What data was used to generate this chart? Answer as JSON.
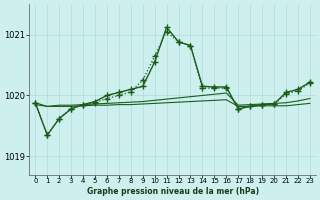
{
  "title": "Graphe pression niveau de la mer (hPa)",
  "background_color": "#cdf0ee",
  "grid_color": "#b0ddd8",
  "line_color": "#1a5c1a",
  "xlim": [
    -0.5,
    23.5
  ],
  "ylim": [
    1018.7,
    1021.5
  ],
  "yticks": [
    1019,
    1020,
    1021
  ],
  "xticks": [
    0,
    1,
    2,
    3,
    4,
    5,
    6,
    7,
    8,
    9,
    10,
    11,
    12,
    13,
    14,
    15,
    16,
    17,
    18,
    19,
    20,
    21,
    22,
    23
  ],
  "s_flat1": [
    1019.85,
    1019.82,
    1019.82,
    1019.82,
    1019.83,
    1019.84,
    1019.84,
    1019.85,
    1019.85,
    1019.86,
    1019.87,
    1019.88,
    1019.89,
    1019.9,
    1019.91,
    1019.92,
    1019.93,
    1019.82,
    1019.82,
    1019.83,
    1019.83,
    1019.83,
    1019.85,
    1019.87
  ],
  "s_flat2": [
    1019.88,
    1019.82,
    1019.84,
    1019.84,
    1019.85,
    1019.86,
    1019.87,
    1019.88,
    1019.89,
    1019.9,
    1019.92,
    1019.94,
    1019.96,
    1019.98,
    1020.0,
    1020.02,
    1020.04,
    1019.84,
    1019.85,
    1019.86,
    1019.87,
    1019.88,
    1019.91,
    1019.95
  ],
  "s_marked_solid_x": [
    0,
    1,
    2,
    3,
    4,
    5,
    6,
    7,
    8,
    9,
    10,
    11,
    12,
    13,
    14,
    15,
    16,
    17,
    18,
    19,
    20,
    21,
    22,
    23
  ],
  "s_marked_solid": [
    1019.88,
    1019.35,
    1019.62,
    1019.78,
    1019.85,
    1019.9,
    1020.0,
    1020.05,
    1020.1,
    1020.15,
    1020.55,
    1021.12,
    1020.88,
    1020.82,
    1020.15,
    1020.14,
    1020.14,
    1019.78,
    1019.82,
    1019.85,
    1019.86,
    1020.05,
    1020.1,
    1020.22
  ],
  "s_marked_dotted_x": [
    0,
    1,
    2,
    3,
    4,
    5,
    6,
    7,
    8,
    9,
    10,
    11,
    12,
    13,
    14,
    15,
    16,
    17,
    18,
    19,
    20,
    21,
    22,
    23
  ],
  "s_marked_dotted": [
    1019.88,
    1019.35,
    1019.62,
    1019.78,
    1019.85,
    1019.88,
    1019.95,
    1020.0,
    1020.06,
    1020.25,
    1020.65,
    1021.05,
    1020.88,
    1020.82,
    1020.12,
    1020.12,
    1020.12,
    1019.78,
    1019.82,
    1019.85,
    1019.86,
    1020.02,
    1020.08,
    1020.2
  ]
}
